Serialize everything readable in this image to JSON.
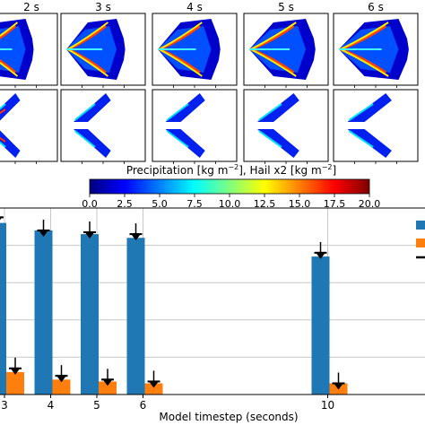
{
  "panels": {
    "titles": [
      "2 s",
      "3 s",
      "4 s",
      "5 s",
      "6 s"
    ],
    "rows": [
      "precipitation",
      "hail"
    ]
  },
  "colorbar": {
    "label_main": "Precipitation [kg m",
    "label_sup1": "−2",
    "label_mid": "], Hail x2 [kg m",
    "label_sup2": "−2",
    "label_end": "]",
    "ticks": [
      "0.0",
      "2.5",
      "5.0",
      "7.5",
      "10.0",
      "12.5",
      "15.0",
      "17.5",
      "20.0"
    ],
    "colormap": [
      "#00007f",
      "#0000ff",
      "#007fff",
      "#00ffff",
      "#7fff7f",
      "#ffff00",
      "#ff7f00",
      "#ff0000",
      "#7f0000"
    ]
  },
  "chart_data": {
    "type": "bar",
    "x": [
      3,
      4,
      5,
      6,
      10
    ],
    "tick_labels": [
      "3",
      "4",
      "5",
      "6",
      "10"
    ],
    "xlabel": "Model timestep (seconds)",
    "ylim": [
      0,
      1
    ],
    "grid": true,
    "legend_placement": "top-right",
    "series": [
      {
        "color": "#1f77b4",
        "values": [
          0.92,
          0.88,
          0.86,
          0.84,
          0.74
        ],
        "markers": [
          0.95,
          0.88,
          0.87,
          0.86,
          0.76
        ]
      },
      {
        "color": "#ff7f0e",
        "values": [
          0.12,
          0.08,
          0.07,
          0.06,
          0.06
        ],
        "markers": [
          0.14,
          0.1,
          0.08,
          0.07,
          0.06
        ]
      }
    ],
    "error_marker_color": "#000000"
  }
}
